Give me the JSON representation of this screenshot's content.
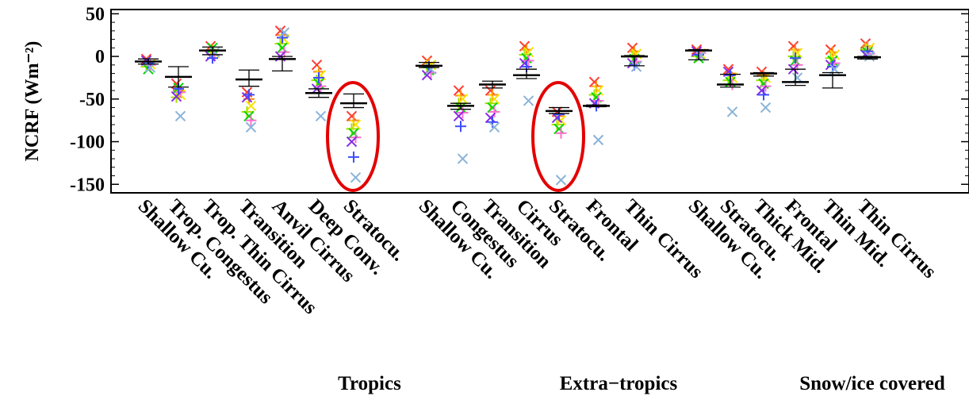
{
  "chart_data": {
    "type": "scatter",
    "ylabel": "NCRF (Wm⁻²)",
    "ylim": [
      -160,
      55
    ],
    "yticks": [
      50,
      0,
      -50,
      -100,
      -150
    ],
    "grid": false,
    "categories": [
      "Shallow Cu.",
      "Trop. Congestus",
      "Trop. Thin Cirrus",
      "Transition",
      "Anvil Cirrus",
      "Deep Conv.",
      "Stratocu.",
      "Shallow Cu.",
      "Congestus",
      "Transition",
      "Cirrus",
      "Stratocu.",
      "Frontal",
      "Thin Cirrus",
      "Shallow Cu.",
      "Stratocu.",
      "Thick Mid.",
      "Frontal",
      "Thin Mid.",
      "Thin Cirrus"
    ],
    "groups": [
      {
        "label": "Tropics",
        "categories": [
          0,
          6
        ]
      },
      {
        "label": "Extra−tropics",
        "categories": [
          7,
          13
        ]
      },
      {
        "label": "Snow/ice covered",
        "categories": [
          14,
          19
        ]
      }
    ],
    "model_colors": [
      "#ff3b30",
      "#ff8a1c",
      "#f5e400",
      "#a8e000",
      "#00d400",
      "#ff6fcf",
      "#8a2be2",
      "#3f4dff",
      "#8ab4d8",
      "#ffb000"
    ],
    "observation_color": "#000000",
    "observation": [
      {
        "mean": -6,
        "range": [
          -9,
          -3
        ]
      },
      {
        "mean": -24,
        "range": [
          -36,
          -12
        ]
      },
      {
        "mean": 7,
        "range": [
          2,
          11
        ]
      },
      {
        "mean": -27,
        "range": [
          -35,
          -16
        ]
      },
      {
        "mean": -3,
        "range": [
          -17,
          0
        ]
      },
      {
        "mean": -43,
        "range": [
          -48,
          -38
        ]
      },
      {
        "mean": -55,
        "range": [
          -60,
          -44
        ]
      },
      {
        "mean": -11,
        "range": [
          -13,
          -7
        ]
      },
      {
        "mean": -58,
        "range": [
          -62,
          -55
        ]
      },
      {
        "mean": -33,
        "range": [
          -37,
          -29
        ]
      },
      {
        "mean": -22,
        "range": [
          -26,
          -15
        ]
      },
      {
        "mean": -64,
        "range": [
          -67,
          -60
        ]
      },
      {
        "mean": -58,
        "range": [
          -59,
          -57
        ]
      },
      {
        "mean": 0,
        "range": [
          -11,
          1
        ]
      },
      {
        "mean": 7,
        "range": [
          -4,
          8
        ]
      },
      {
        "mean": -33,
        "range": [
          -36,
          -21
        ]
      },
      {
        "mean": -20,
        "range": [
          -23,
          -19
        ]
      },
      {
        "mean": -30,
        "range": [
          -34,
          -15
        ]
      },
      {
        "mean": -22,
        "range": [
          -37,
          -19
        ]
      },
      {
        "mean": -1,
        "range": [
          -3,
          0
        ]
      }
    ],
    "models": [
      [
        -3,
        -6,
        -9,
        -12,
        -15,
        -10,
        -5,
        -8,
        -13
      ],
      [
        -32,
        -40,
        -45,
        -48,
        -37,
        -42,
        -47,
        -38,
        -70
      ],
      [
        12,
        8,
        4,
        6,
        10,
        2,
        0,
        -2,
        5
      ],
      [
        -42,
        -50,
        -58,
        -65,
        -70,
        -75,
        -48,
        -45,
        -83
      ],
      [
        30,
        25,
        20,
        15,
        10,
        5,
        0,
        22,
        28
      ],
      [
        -10,
        -18,
        -22,
        -28,
        -32,
        -35,
        -38,
        -25,
        -70
      ],
      [
        -70,
        -75,
        -80,
        -85,
        -90,
        -95,
        -100,
        -118,
        -142
      ],
      [
        -5,
        -8,
        -10,
        -13,
        -16,
        -19,
        -22,
        -12,
        -15
      ],
      [
        -40,
        -46,
        -50,
        -55,
        -60,
        -66,
        -70,
        -82,
        -120
      ],
      [
        -40,
        -45,
        -50,
        -55,
        -60,
        -65,
        -72,
        -77,
        -83
      ],
      [
        12,
        8,
        5,
        2,
        -2,
        -5,
        -8,
        -12,
        -52
      ],
      [
        -65,
        -70,
        -75,
        -80,
        -85,
        -90,
        -72,
        -68,
        -145
      ],
      [
        -30,
        -35,
        -40,
        -45,
        -48,
        -52,
        -55,
        -58,
        -98
      ],
      [
        10,
        6,
        3,
        0,
        -3,
        -6,
        -8,
        -10,
        -12
      ],
      [
        8,
        5,
        3,
        0,
        -2,
        4,
        6,
        2,
        1
      ],
      [
        -15,
        -20,
        -25,
        -28,
        -30,
        -33,
        -18,
        -22,
        -65
      ],
      [
        -18,
        -22,
        -25,
        -28,
        -32,
        -35,
        -40,
        -45,
        -60
      ],
      [
        12,
        8,
        4,
        0,
        -5,
        -10,
        -15,
        -2,
        -25
      ],
      [
        8,
        5,
        2,
        -2,
        -5,
        -8,
        -10,
        -12,
        -15
      ],
      [
        15,
        12,
        10,
        8,
        5,
        3,
        2,
        6,
        0
      ]
    ]
  }
}
